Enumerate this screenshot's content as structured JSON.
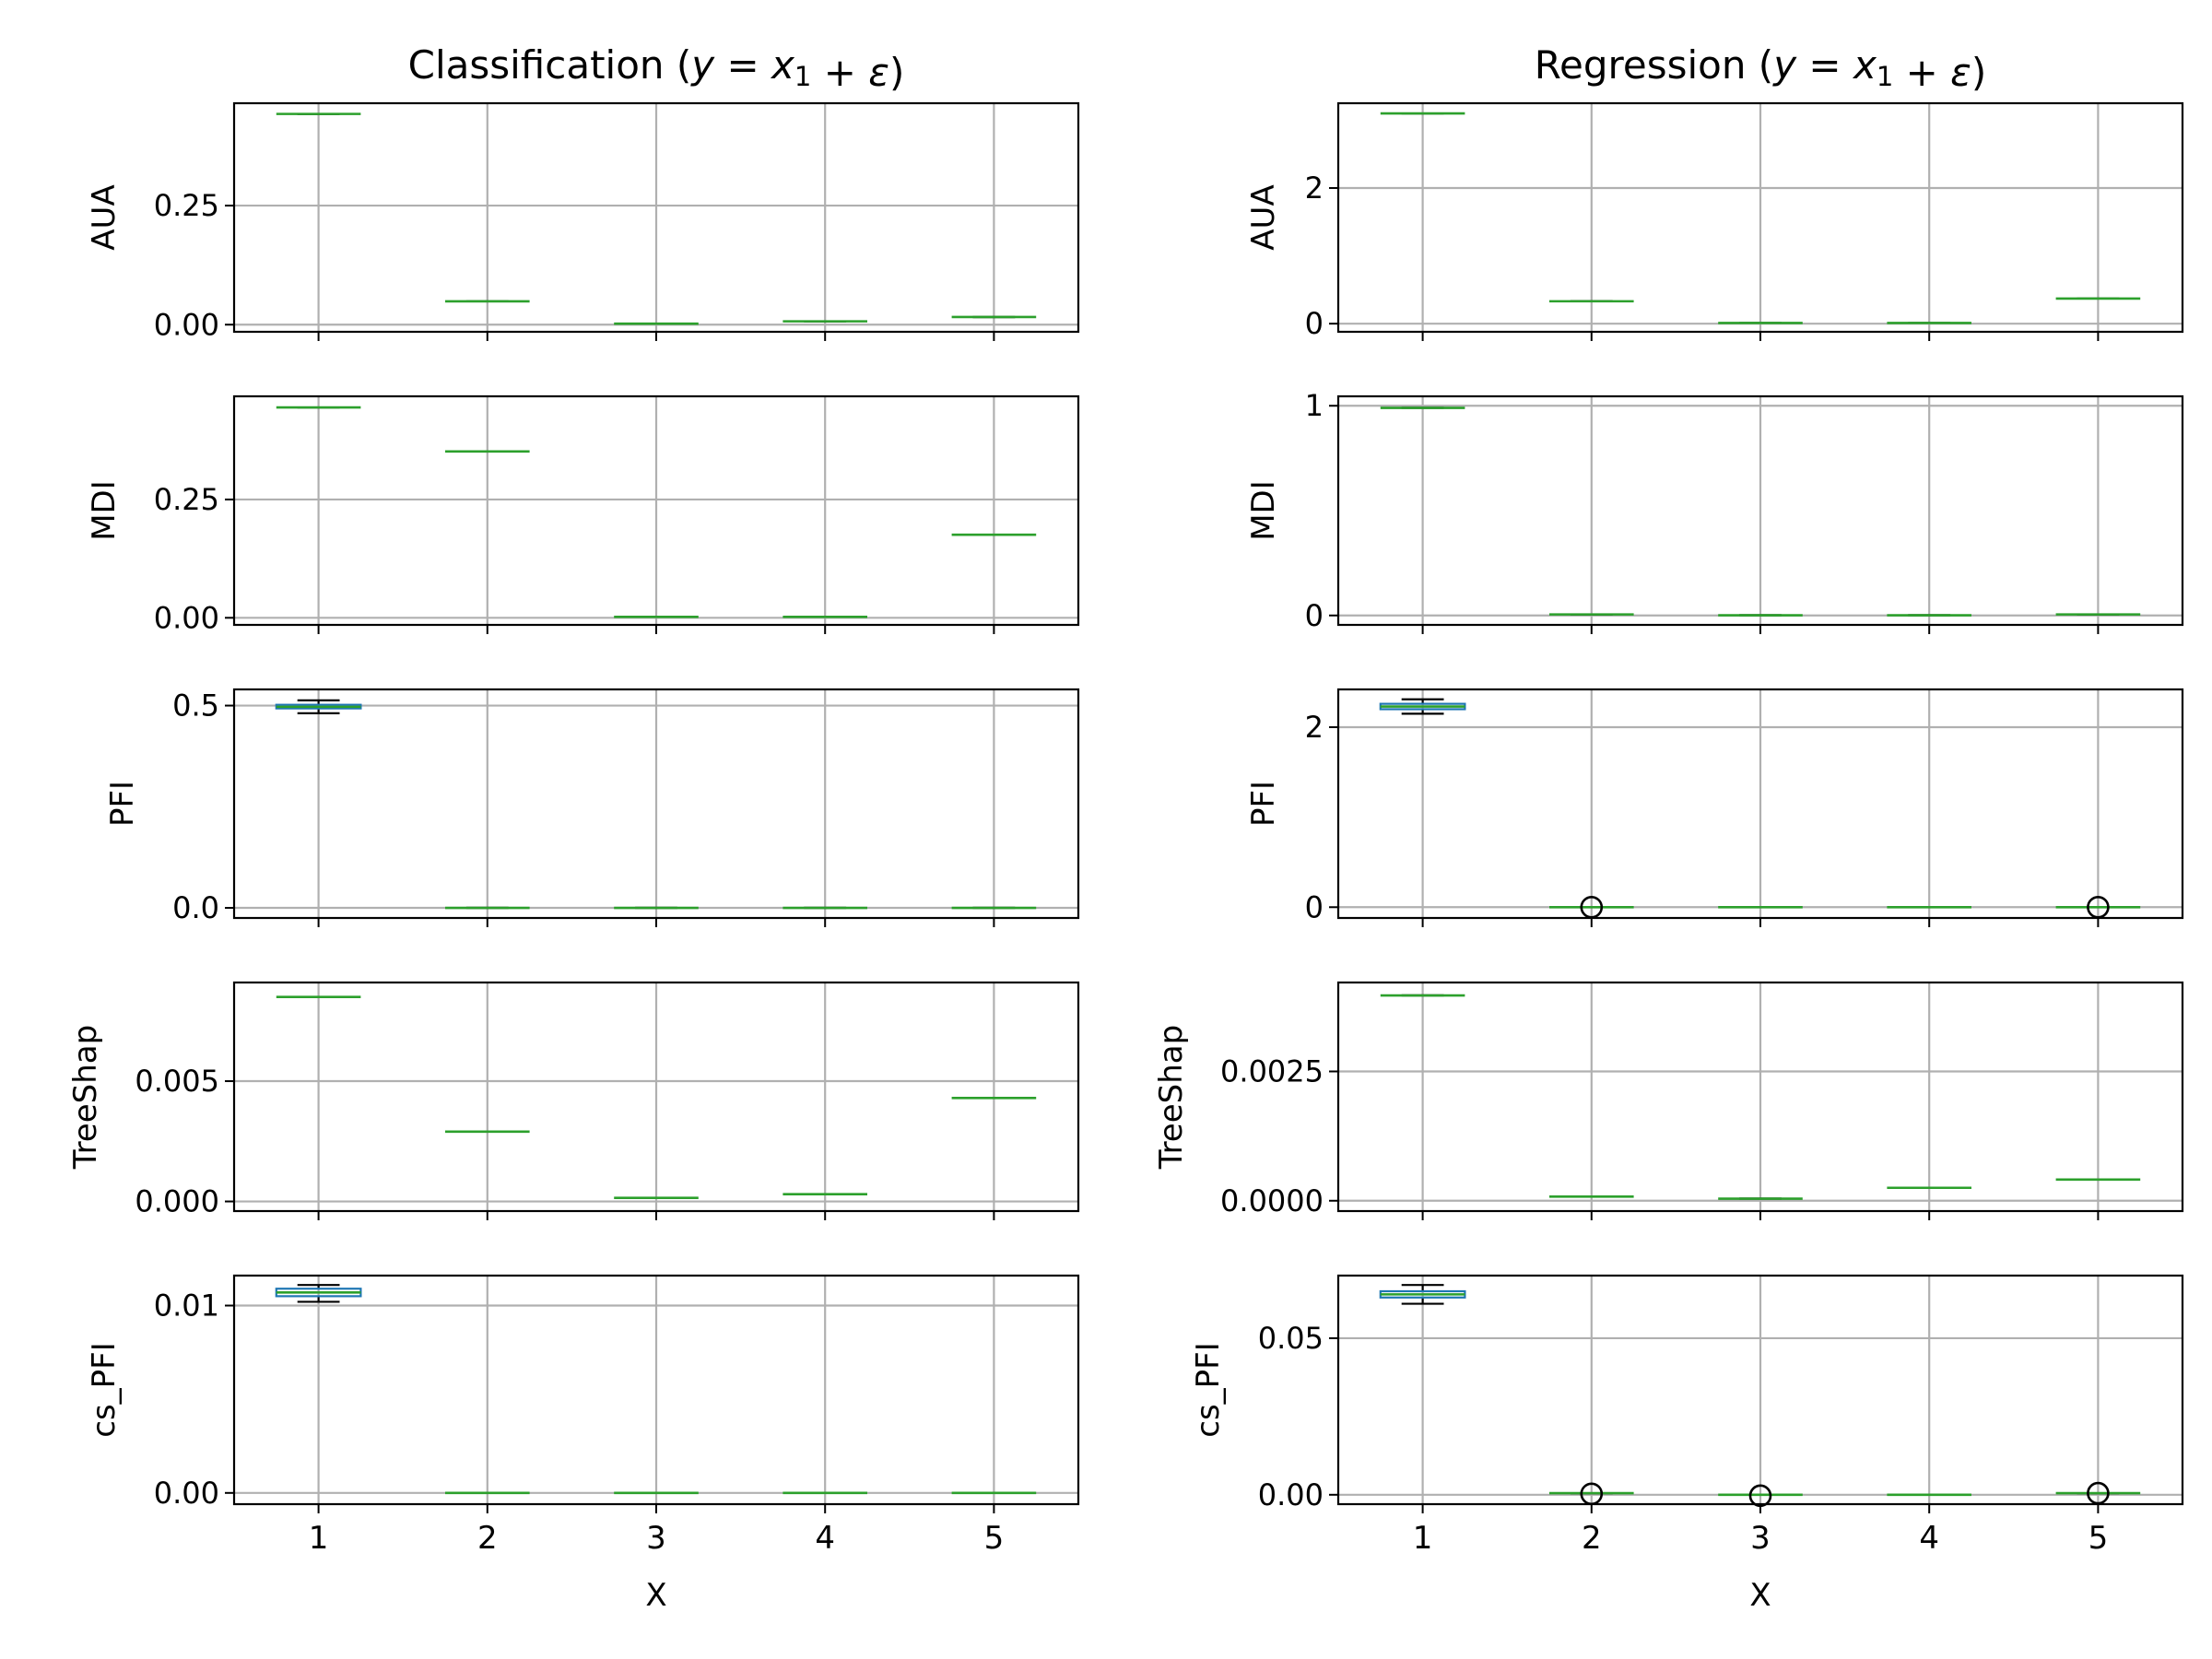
{
  "chart_data": [
    {
      "type": "box",
      "column_title": "Classification ",
      "row": 0,
      "col": 0,
      "ylabel": "AUA",
      "ylim": [
        -0.015,
        0.465
      ],
      "yticks": [
        0.0,
        0.25
      ],
      "ytick_labels": [
        "0.00",
        "0.25"
      ],
      "categories": [
        "1",
        "2",
        "3",
        "4",
        "5"
      ],
      "boxes": [
        {
          "median": 0.4425,
          "q1": 0.4425,
          "q3": 0.4425,
          "whislo": 0.4425,
          "whishi": 0.4425,
          "fliers": []
        },
        {
          "median": 0.049,
          "q1": 0.049,
          "q3": 0.049,
          "whislo": 0.049,
          "whishi": 0.049,
          "fliers": []
        },
        {
          "median": 0.002,
          "q1": 0.002,
          "q3": 0.002,
          "whislo": 0.002,
          "whishi": 0.002,
          "fliers": []
        },
        {
          "median": 0.007,
          "q1": 0.007,
          "q3": 0.007,
          "whislo": 0.007,
          "whishi": 0.007,
          "fliers": []
        },
        {
          "median": 0.016,
          "q1": 0.016,
          "q3": 0.016,
          "whislo": 0.016,
          "whishi": 0.016,
          "fliers": []
        }
      ]
    },
    {
      "type": "box",
      "row": 0,
      "col": 1,
      "column_title": "Regression ",
      "ylabel": "AUA",
      "ylim": [
        -0.12,
        3.25
      ],
      "yticks": [
        0,
        2
      ],
      "ytick_labels": [
        "0",
        "2"
      ],
      "categories": [
        "1",
        "2",
        "3",
        "4",
        "5"
      ],
      "boxes": [
        {
          "median": 3.1,
          "q1": 3.1,
          "q3": 3.1,
          "whislo": 3.1,
          "whishi": 3.1,
          "fliers": []
        },
        {
          "median": 0.33,
          "q1": 0.33,
          "q3": 0.33,
          "whislo": 0.33,
          "whishi": 0.33,
          "fliers": []
        },
        {
          "median": 0.01,
          "q1": 0.01,
          "q3": 0.01,
          "whislo": 0.01,
          "whishi": 0.01,
          "fliers": []
        },
        {
          "median": 0.01,
          "q1": 0.01,
          "q3": 0.01,
          "whislo": 0.01,
          "whishi": 0.01,
          "fliers": []
        },
        {
          "median": 0.37,
          "q1": 0.37,
          "q3": 0.37,
          "whislo": 0.37,
          "whishi": 0.37,
          "fliers": []
        }
      ]
    },
    {
      "type": "box",
      "row": 1,
      "col": 0,
      "ylabel": "MDI",
      "ylim": [
        -0.015,
        0.468
      ],
      "yticks": [
        0.0,
        0.25
      ],
      "ytick_labels": [
        "0.00",
        "0.25"
      ],
      "categories": [
        "1",
        "2",
        "3",
        "4",
        "5"
      ],
      "boxes": [
        {
          "median": 0.4445,
          "q1": 0.4445,
          "q3": 0.4445,
          "whislo": 0.4445,
          "whishi": 0.4445,
          "fliers": []
        },
        {
          "median": 0.3515,
          "q1": 0.3515,
          "q3": 0.3515,
          "whislo": 0.3515,
          "whishi": 0.3515,
          "fliers": []
        },
        {
          "median": 0.002,
          "q1": 0.002,
          "q3": 0.002,
          "whislo": 0.002,
          "whishi": 0.002,
          "fliers": []
        },
        {
          "median": 0.002,
          "q1": 0.002,
          "q3": 0.002,
          "whislo": 0.002,
          "whishi": 0.002,
          "fliers": []
        },
        {
          "median": 0.1755,
          "q1": 0.1755,
          "q3": 0.1755,
          "whislo": 0.1755,
          "whishi": 0.1755,
          "fliers": []
        }
      ]
    },
    {
      "type": "box",
      "row": 1,
      "col": 1,
      "ylabel": "MDI",
      "ylim": [
        -0.045,
        1.045
      ],
      "yticks": [
        0,
        1
      ],
      "ytick_labels": [
        "0",
        "1"
      ],
      "categories": [
        "1",
        "2",
        "3",
        "4",
        "5"
      ],
      "boxes": [
        {
          "median": 0.99,
          "q1": 0.99,
          "q3": 0.99,
          "whislo": 0.99,
          "whishi": 0.99,
          "fliers": []
        },
        {
          "median": 0.005,
          "q1": 0.005,
          "q3": 0.005,
          "whislo": 0.005,
          "whishi": 0.005,
          "fliers": []
        },
        {
          "median": 0.001,
          "q1": 0.001,
          "q3": 0.001,
          "whislo": 0.001,
          "whishi": 0.001,
          "fliers": []
        },
        {
          "median": 0.001,
          "q1": 0.001,
          "q3": 0.001,
          "whislo": 0.001,
          "whishi": 0.001,
          "fliers": []
        },
        {
          "median": 0.005,
          "q1": 0.005,
          "q3": 0.005,
          "whislo": 0.005,
          "whishi": 0.005,
          "fliers": []
        }
      ]
    },
    {
      "type": "box",
      "row": 2,
      "col": 0,
      "ylabel": "PFI",
      "ylim": [
        -0.025,
        0.54
      ],
      "yticks": [
        0.0,
        0.5
      ],
      "ytick_labels": [
        "0.0",
        "0.5"
      ],
      "categories": [
        "1",
        "2",
        "3",
        "4",
        "5"
      ],
      "boxes": [
        {
          "median": 0.497,
          "q1": 0.493,
          "q3": 0.502,
          "whislo": 0.481,
          "whishi": 0.513,
          "fliers": []
        },
        {
          "median": 0.0,
          "q1": 0.0,
          "q3": 0.0,
          "whislo": 0.0,
          "whishi": 0.0,
          "fliers": []
        },
        {
          "median": 0.0,
          "q1": 0.0,
          "q3": 0.0,
          "whislo": 0.0,
          "whishi": 0.0,
          "fliers": []
        },
        {
          "median": 0.0,
          "q1": 0.0,
          "q3": 0.0,
          "whislo": 0.0,
          "whishi": 0.0,
          "fliers": []
        },
        {
          "median": 0.0,
          "q1": 0.0,
          "q3": 0.0,
          "whislo": 0.0,
          "whishi": 0.0,
          "fliers": []
        }
      ]
    },
    {
      "type": "box",
      "row": 2,
      "col": 1,
      "ylabel": "PFI",
      "ylim": [
        -0.12,
        2.42
      ],
      "yticks": [
        0,
        2
      ],
      "ytick_labels": [
        "0",
        "2"
      ],
      "categories": [
        "1",
        "2",
        "3",
        "4",
        "5"
      ],
      "boxes": [
        {
          "median": 2.23,
          "q1": 2.2,
          "q3": 2.26,
          "whislo": 2.15,
          "whishi": 2.31,
          "fliers": []
        },
        {
          "median": 0.0,
          "q1": 0.0,
          "q3": 0.0,
          "whislo": 0.0,
          "whishi": 0.0,
          "fliers": [
            0.0
          ]
        },
        {
          "median": 0.0,
          "q1": 0.0,
          "q3": 0.0,
          "whislo": 0.0,
          "whishi": 0.0,
          "fliers": []
        },
        {
          "median": 0.0,
          "q1": 0.0,
          "q3": 0.0,
          "whislo": 0.0,
          "whishi": 0.0,
          "fliers": []
        },
        {
          "median": 0.0,
          "q1": 0.0,
          "q3": 0.0,
          "whislo": 0.0,
          "whishi": 0.0,
          "fliers": [
            0.0
          ]
        }
      ]
    },
    {
      "type": "box",
      "row": 3,
      "col": 0,
      "ylabel": "TreeShap",
      "ylim": [
        -0.0004,
        0.0091
      ],
      "yticks": [
        0.0,
        0.005
      ],
      "ytick_labels": [
        "0.000",
        "0.005"
      ],
      "categories": [
        "1",
        "2",
        "3",
        "4",
        "5"
      ],
      "boxes": [
        {
          "median": 0.0085,
          "q1": 0.0085,
          "q3": 0.0085,
          "whislo": 0.0085,
          "whishi": 0.0085,
          "fliers": []
        },
        {
          "median": 0.0029,
          "q1": 0.0029,
          "q3": 0.0029,
          "whislo": 0.0029,
          "whishi": 0.0029,
          "fliers": []
        },
        {
          "median": 0.00015,
          "q1": 0.00015,
          "q3": 0.00015,
          "whislo": 0.00015,
          "whishi": 0.00015,
          "fliers": []
        },
        {
          "median": 0.0003,
          "q1": 0.0003,
          "q3": 0.0003,
          "whislo": 0.0003,
          "whishi": 0.0003,
          "fliers": []
        },
        {
          "median": 0.0043,
          "q1": 0.0043,
          "q3": 0.0043,
          "whislo": 0.0043,
          "whishi": 0.0043,
          "fliers": []
        }
      ]
    },
    {
      "type": "box",
      "row": 3,
      "col": 1,
      "ylabel": "TreeShap",
      "ylim": [
        -0.0002,
        0.00422
      ],
      "yticks": [
        0.0,
        0.0025
      ],
      "ytick_labels": [
        "0.0000",
        "0.0025"
      ],
      "categories": [
        "1",
        "2",
        "3",
        "4",
        "5"
      ],
      "boxes": [
        {
          "median": 0.00397,
          "q1": 0.00397,
          "q3": 0.00397,
          "whislo": 0.00397,
          "whishi": 0.00397,
          "fliers": []
        },
        {
          "median": 8e-05,
          "q1": 8e-05,
          "q3": 8e-05,
          "whislo": 8e-05,
          "whishi": 8e-05,
          "fliers": []
        },
        {
          "median": 4e-05,
          "q1": 4e-05,
          "q3": 4e-05,
          "whislo": 4e-05,
          "whishi": 4e-05,
          "fliers": []
        },
        {
          "median": 0.00025,
          "q1": 0.00025,
          "q3": 0.00025,
          "whislo": 0.00025,
          "whishi": 0.00025,
          "fliers": []
        },
        {
          "median": 0.00041,
          "q1": 0.00041,
          "q3": 0.00041,
          "whislo": 0.00041,
          "whishi": 0.00041,
          "fliers": []
        }
      ]
    },
    {
      "type": "box",
      "row": 4,
      "col": 0,
      "ylabel": "cs_PFI",
      "ylim": [
        -0.0006,
        0.0116
      ],
      "yticks": [
        0.0,
        0.01
      ],
      "ytick_labels": [
        "0.00",
        "0.01"
      ],
      "categories": [
        "1",
        "2",
        "3",
        "4",
        "5"
      ],
      "boxes": [
        {
          "median": 0.0107,
          "q1": 0.0105,
          "q3": 0.0109,
          "whislo": 0.0102,
          "whishi": 0.0111,
          "fliers": []
        },
        {
          "median": 0.0,
          "q1": 0.0,
          "q3": 0.0,
          "whislo": 0.0,
          "whishi": 0.0,
          "fliers": []
        },
        {
          "median": 0.0,
          "q1": 0.0,
          "q3": 0.0,
          "whislo": 0.0,
          "whishi": 0.0,
          "fliers": []
        },
        {
          "median": 0.0,
          "q1": 0.0,
          "q3": 0.0,
          "whislo": 0.0,
          "whishi": 0.0,
          "fliers": []
        },
        {
          "median": 0.0,
          "q1": 0.0,
          "q3": 0.0,
          "whislo": 0.0,
          "whishi": 0.0,
          "fliers": []
        }
      ]
    },
    {
      "type": "box",
      "row": 4,
      "col": 1,
      "ylabel": "cs_PFI",
      "ylim": [
        -0.003,
        0.07
      ],
      "yticks": [
        0.0,
        0.05
      ],
      "ytick_labels": [
        "0.00",
        "0.05"
      ],
      "categories": [
        "1",
        "2",
        "3",
        "4",
        "5"
      ],
      "boxes": [
        {
          "median": 0.064,
          "q1": 0.063,
          "q3": 0.065,
          "whislo": 0.061,
          "whishi": 0.067,
          "fliers": []
        },
        {
          "median": 0.0005,
          "q1": 0.0005,
          "q3": 0.0005,
          "whislo": 0.0005,
          "whishi": 0.0005,
          "fliers": [
            0.0003
          ]
        },
        {
          "median": 0.0,
          "q1": 0.0,
          "q3": 0.0,
          "whislo": 0.0,
          "whishi": 0.0,
          "fliers": [
            -0.0003
          ]
        },
        {
          "median": 0.0,
          "q1": 0.0,
          "q3": 0.0,
          "whislo": 0.0,
          "whishi": 0.0,
          "fliers": []
        },
        {
          "median": 0.0005,
          "q1": 0.0005,
          "q3": 0.0005,
          "whislo": 0.0005,
          "whishi": 0.0005,
          "fliers": [
            0.0005
          ]
        }
      ]
    }
  ],
  "xlabel": "X",
  "grid": true,
  "colors": {
    "box": "#1f77b4",
    "median": "#2ca02c",
    "whisker": "#000000",
    "grid": "#b0b0b0",
    "frame": "#000000",
    "flier": "#000000"
  }
}
